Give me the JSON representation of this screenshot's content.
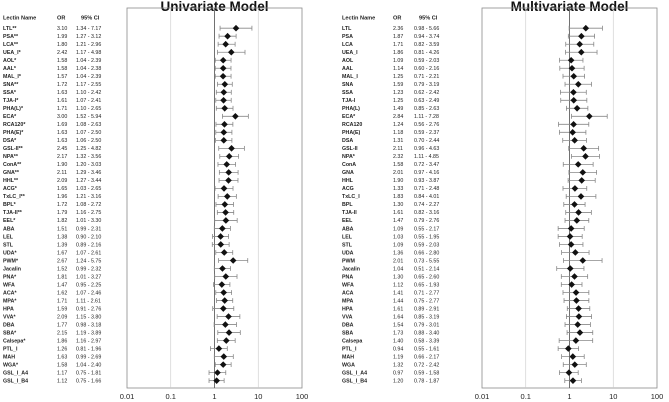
{
  "chart_data": [
    {
      "type": "forest",
      "title": "Univariate Model",
      "columns": {
        "label": "Lectin Name",
        "or": "OR",
        "ci": "95% CI"
      },
      "xscale": "log",
      "xlim": [
        0.01,
        100
      ],
      "xticks": [
        "0.01",
        "0.1",
        "1",
        "10",
        "100"
      ],
      "reference_line": 1,
      "rows": [
        {
          "name": "LTL**",
          "or": 3.1,
          "lo": 1.34,
          "hi": 7.17,
          "or_text": "3.10",
          "ci_text": "1.34 - 7.17"
        },
        {
          "name": "PSA**",
          "or": 1.99,
          "lo": 1.27,
          "hi": 3.12,
          "or_text": "1.99",
          "ci_text": "1.27 - 3.12"
        },
        {
          "name": "LCA**",
          "or": 1.8,
          "lo": 1.21,
          "hi": 2.96,
          "or_text": "1.80",
          "ci_text": "1.21 - 2.96"
        },
        {
          "name": "UEA_I*",
          "or": 2.42,
          "lo": 1.17,
          "hi": 4.98,
          "or_text": "2.42",
          "ci_text": "1.17 - 4.98"
        },
        {
          "name": "AOL*",
          "or": 1.58,
          "lo": 1.04,
          "hi": 2.39,
          "or_text": "1.58",
          "ci_text": "1.04 - 2.39"
        },
        {
          "name": "AAL*",
          "or": 1.58,
          "lo": 1.04,
          "hi": 2.38,
          "or_text": "1.58",
          "ci_text": "1.04 - 2.38"
        },
        {
          "name": "MAL_I*",
          "or": 1.57,
          "lo": 1.04,
          "hi": 2.39,
          "or_text": "1.57",
          "ci_text": "1.04 - 2.39"
        },
        {
          "name": "SNA**",
          "or": 1.72,
          "lo": 1.17,
          "hi": 2.55,
          "or_text": "1.72",
          "ci_text": "1.17 - 2.55"
        },
        {
          "name": "SSA*",
          "or": 1.63,
          "lo": 1.1,
          "hi": 2.42,
          "or_text": "1.63",
          "ci_text": "1.10 - 2.42"
        },
        {
          "name": "TJA-I*",
          "or": 1.61,
          "lo": 1.07,
          "hi": 2.41,
          "or_text": "1.61",
          "ci_text": "1.07 - 2.41"
        },
        {
          "name": "PHA(L)*",
          "or": 1.71,
          "lo": 1.1,
          "hi": 2.65,
          "or_text": "1.71",
          "ci_text": "1.10 - 2.65"
        },
        {
          "name": "ECA*",
          "or": 3.0,
          "lo": 1.52,
          "hi": 5.94,
          "or_text": "3.00",
          "ci_text": "1.52 - 5.94"
        },
        {
          "name": "RCA120*",
          "or": 1.69,
          "lo": 1.08,
          "hi": 2.63,
          "or_text": "1.69",
          "ci_text": "1.08 - 2.63"
        },
        {
          "name": "PHA(E)*",
          "or": 1.63,
          "lo": 1.07,
          "hi": 2.5,
          "or_text": "1.63",
          "ci_text": "1.07 - 2.50"
        },
        {
          "name": "DSA*",
          "or": 1.63,
          "lo": 1.06,
          "hi": 2.5,
          "or_text": "1.63",
          "ci_text": "1.06 - 2.50"
        },
        {
          "name": "GSL-II**",
          "or": 2.45,
          "lo": 1.25,
          "hi": 4.82,
          "or_text": "2.45",
          "ci_text": "1.25 - 4.82"
        },
        {
          "name": "NPA**",
          "or": 2.17,
          "lo": 1.32,
          "hi": 3.56,
          "or_text": "2.17",
          "ci_text": "1.32 - 3.56"
        },
        {
          "name": "ConA**",
          "or": 1.9,
          "lo": 1.2,
          "hi": 3.03,
          "or_text": "1.90",
          "ci_text": "1.20 - 3.03"
        },
        {
          "name": "GNA**",
          "or": 2.11,
          "lo": 1.29,
          "hi": 3.46,
          "or_text": "2.11",
          "ci_text": "1.29 - 3.46"
        },
        {
          "name": "HHL**",
          "or": 2.09,
          "lo": 1.27,
          "hi": 3.44,
          "or_text": "2.09",
          "ci_text": "1.27 - 3.44"
        },
        {
          "name": "ACG*",
          "or": 1.65,
          "lo": 1.03,
          "hi": 2.65,
          "or_text": "1.65",
          "ci_text": "1.03 - 2.65"
        },
        {
          "name": "TxLC_I**",
          "or": 1.96,
          "lo": 1.21,
          "hi": 3.16,
          "or_text": "1.96",
          "ci_text": "1.21 - 3.16"
        },
        {
          "name": "BPL*",
          "or": 1.72,
          "lo": 1.08,
          "hi": 2.72,
          "or_text": "1.72",
          "ci_text": "1.08 - 2.72"
        },
        {
          "name": "TJA-II**",
          "or": 1.79,
          "lo": 1.16,
          "hi": 2.75,
          "or_text": "1.79",
          "ci_text": "1.16 - 2.75"
        },
        {
          "name": "EEL*",
          "or": 1.82,
          "lo": 1.01,
          "hi": 3.3,
          "or_text": "1.82",
          "ci_text": "1.01 - 3.30"
        },
        {
          "name": "ABA",
          "or": 1.51,
          "lo": 0.99,
          "hi": 2.31,
          "or_text": "1.51",
          "ci_text": "0.99 - 2.31"
        },
        {
          "name": "LEL",
          "or": 1.38,
          "lo": 0.9,
          "hi": 2.1,
          "or_text": "1.38",
          "ci_text": "0.90 - 2.10"
        },
        {
          "name": "STL",
          "or": 1.39,
          "lo": 0.89,
          "hi": 2.16,
          "or_text": "1.39",
          "ci_text": "0.89 - 2.16"
        },
        {
          "name": "UDA*",
          "or": 1.67,
          "lo": 1.07,
          "hi": 2.61,
          "or_text": "1.67",
          "ci_text": "1.07 - 2.61"
        },
        {
          "name": "PWM*",
          "or": 2.67,
          "lo": 1.24,
          "hi": 5.75,
          "or_text": "2.67",
          "ci_text": "1.24 - 5.75"
        },
        {
          "name": "Jacalin",
          "or": 1.52,
          "lo": 0.99,
          "hi": 2.32,
          "or_text": "1.52",
          "ci_text": "0.99 - 2.32"
        },
        {
          "name": "PNA*",
          "or": 1.81,
          "lo": 1.01,
          "hi": 3.27,
          "or_text": "1.81",
          "ci_text": "1.01 - 3.27"
        },
        {
          "name": "WFA",
          "or": 1.47,
          "lo": 0.95,
          "hi": 2.25,
          "or_text": "1.47",
          "ci_text": "0.95 - 2.25"
        },
        {
          "name": "ACA*",
          "or": 1.62,
          "lo": 1.07,
          "hi": 2.46,
          "or_text": "1.62",
          "ci_text": "1.07 - 2.46"
        },
        {
          "name": "MPA*",
          "or": 1.71,
          "lo": 1.11,
          "hi": 2.61,
          "or_text": "1.71",
          "ci_text": "1.11 - 2.61"
        },
        {
          "name": "HPA",
          "or": 1.59,
          "lo": 0.91,
          "hi": 2.76,
          "or_text": "1.59",
          "ci_text": "0.91 - 2.76"
        },
        {
          "name": "VVA*",
          "or": 2.09,
          "lo": 1.15,
          "hi": 3.8,
          "or_text": "2.09",
          "ci_text": "1.15 - 3.80"
        },
        {
          "name": "DBA",
          "or": 1.77,
          "lo": 0.98,
          "hi": 3.18,
          "or_text": "1.77",
          "ci_text": "0.98 - 3.18"
        },
        {
          "name": "SBA*",
          "or": 2.15,
          "lo": 1.19,
          "hi": 3.89,
          "or_text": "2.15",
          "ci_text": "1.19 - 3.89"
        },
        {
          "name": "Calsepa*",
          "or": 1.86,
          "lo": 1.16,
          "hi": 2.97,
          "or_text": "1.86",
          "ci_text": "1.16 - 2.97"
        },
        {
          "name": "PTL_I",
          "or": 1.26,
          "lo": 0.81,
          "hi": 1.96,
          "or_text": "1.26",
          "ci_text": "0.81 - 1.96"
        },
        {
          "name": "MAH",
          "or": 1.63,
          "lo": 0.99,
          "hi": 2.69,
          "or_text": "1.63",
          "ci_text": "0.99 - 2.69"
        },
        {
          "name": "WGA*",
          "or": 1.58,
          "lo": 1.04,
          "hi": 2.4,
          "or_text": "1.58",
          "ci_text": "1.04 - 2.40"
        },
        {
          "name": "GSL_I_A4",
          "or": 1.17,
          "lo": 0.75,
          "hi": 1.81,
          "or_text": "1.17",
          "ci_text": "0.75 - 1.81"
        },
        {
          "name": "GSL_I_B4",
          "or": 1.12,
          "lo": 0.75,
          "hi": 1.66,
          "or_text": "1.12",
          "ci_text": "0.75 - 1.66"
        }
      ]
    },
    {
      "type": "forest",
      "title": "Multivariate Model",
      "columns": {
        "label": "Lectin Name",
        "or": "OR",
        "ci": "95% CI"
      },
      "xscale": "log",
      "xlim": [
        0.01,
        100
      ],
      "xticks": [
        "0.01",
        "0.1",
        "1",
        "10",
        "100"
      ],
      "reference_line": 1,
      "rows": [
        {
          "name": "LTL",
          "or": 2.36,
          "lo": 0.98,
          "hi": 5.66,
          "or_text": "2.36",
          "ci_text": "0.98 - 5.66"
        },
        {
          "name": "PSA",
          "or": 1.87,
          "lo": 0.94,
          "hi": 3.74,
          "or_text": "1.87",
          "ci_text": "0.94 - 3.74"
        },
        {
          "name": "LCA",
          "or": 1.71,
          "lo": 0.82,
          "hi": 3.59,
          "or_text": "1.71",
          "ci_text": "0.82 - 3.59"
        },
        {
          "name": "UEA_I",
          "or": 1.86,
          "lo": 0.81,
          "hi": 4.26,
          "or_text": "1.86",
          "ci_text": "0.81 - 4.26"
        },
        {
          "name": "AOL",
          "or": 1.09,
          "lo": 0.59,
          "hi": 2.03,
          "or_text": "1.09",
          "ci_text": "0.59 - 2.03"
        },
        {
          "name": "AAL",
          "or": 1.14,
          "lo": 0.6,
          "hi": 2.16,
          "or_text": "1.14",
          "ci_text": "0.60 - 2.16"
        },
        {
          "name": "MAL_I",
          "or": 1.25,
          "lo": 0.71,
          "hi": 2.21,
          "or_text": "1.25",
          "ci_text": "0.71 - 2.21"
        },
        {
          "name": "SNA",
          "or": 1.59,
          "lo": 0.79,
          "hi": 3.19,
          "or_text": "1.59",
          "ci_text": "0.79 - 3.19"
        },
        {
          "name": "SSA",
          "or": 1.23,
          "lo": 0.62,
          "hi": 2.42,
          "or_text": "1.23",
          "ci_text": "0.62 - 2.42"
        },
        {
          "name": "TJA-I",
          "or": 1.25,
          "lo": 0.63,
          "hi": 2.49,
          "or_text": "1.25",
          "ci_text": "0.63 - 2.49"
        },
        {
          "name": "PHA(L)",
          "or": 1.49,
          "lo": 0.85,
          "hi": 2.63,
          "or_text": "1.49",
          "ci_text": "0.85 - 2.63"
        },
        {
          "name": "ECA*",
          "or": 2.84,
          "lo": 1.11,
          "hi": 7.28,
          "or_text": "2.84",
          "ci_text": "1.11 - 7.28"
        },
        {
          "name": "RCA120",
          "or": 1.24,
          "lo": 0.56,
          "hi": 2.76,
          "or_text": "1.24",
          "ci_text": "0.56 - 2.76"
        },
        {
          "name": "PHA(E)",
          "or": 1.18,
          "lo": 0.59,
          "hi": 2.37,
          "or_text": "1.18",
          "ci_text": "0.59 - 2.37"
        },
        {
          "name": "DSA",
          "or": 1.31,
          "lo": 0.7,
          "hi": 2.44,
          "or_text": "1.31",
          "ci_text": "0.70 - 2.44"
        },
        {
          "name": "GSL-II",
          "or": 2.11,
          "lo": 0.96,
          "hi": 4.63,
          "or_text": "2.11",
          "ci_text": "0.96 - 4.63"
        },
        {
          "name": "NPA*",
          "or": 2.32,
          "lo": 1.11,
          "hi": 4.85,
          "or_text": "2.32",
          "ci_text": "1.11 - 4.85"
        },
        {
          "name": "ConA",
          "or": 1.58,
          "lo": 0.72,
          "hi": 3.47,
          "or_text": "1.58",
          "ci_text": "0.72 - 3.47"
        },
        {
          "name": "GNA",
          "or": 2.01,
          "lo": 0.97,
          "hi": 4.16,
          "or_text": "2.01",
          "ci_text": "0.97 - 4.16"
        },
        {
          "name": "HHL",
          "or": 1.9,
          "lo": 0.93,
          "hi": 3.87,
          "or_text": "1.90",
          "ci_text": "0.93 - 3.87"
        },
        {
          "name": "ACG",
          "or": 1.33,
          "lo": 0.71,
          "hi": 2.48,
          "or_text": "1.33",
          "ci_text": "0.71 - 2.48"
        },
        {
          "name": "TxLC_I",
          "or": 1.83,
          "lo": 0.84,
          "hi": 4.01,
          "or_text": "1.83",
          "ci_text": "0.84 - 4.01"
        },
        {
          "name": "BPL",
          "or": 1.3,
          "lo": 0.74,
          "hi": 2.27,
          "or_text": "1.30",
          "ci_text": "0.74 - 2.27"
        },
        {
          "name": "TJA-II",
          "or": 1.61,
          "lo": 0.82,
          "hi": 3.16,
          "or_text": "1.61",
          "ci_text": "0.82 - 3.16"
        },
        {
          "name": "EEL",
          "or": 1.47,
          "lo": 0.79,
          "hi": 2.76,
          "or_text": "1.47",
          "ci_text": "0.79 - 2.76"
        },
        {
          "name": "ABA",
          "or": 1.09,
          "lo": 0.55,
          "hi": 2.17,
          "or_text": "1.09",
          "ci_text": "0.55 - 2.17"
        },
        {
          "name": "LEL",
          "or": 1.03,
          "lo": 0.55,
          "hi": 1.95,
          "or_text": "1.03",
          "ci_text": "0.55 - 1.95"
        },
        {
          "name": "STL",
          "or": 1.09,
          "lo": 0.59,
          "hi": 2.03,
          "or_text": "1.09",
          "ci_text": "0.59 - 2.03"
        },
        {
          "name": "UDA",
          "or": 1.36,
          "lo": 0.66,
          "hi": 2.8,
          "or_text": "1.36",
          "ci_text": "0.66 - 2.80"
        },
        {
          "name": "PWM",
          "or": 2.01,
          "lo": 0.73,
          "hi": 5.55,
          "or_text": "2.01",
          "ci_text": "0.73 - 5.55"
        },
        {
          "name": "Jacalin",
          "or": 1.04,
          "lo": 0.51,
          "hi": 2.14,
          "or_text": "1.04",
          "ci_text": "0.51 - 2.14"
        },
        {
          "name": "PNA",
          "or": 1.3,
          "lo": 0.65,
          "hi": 2.6,
          "or_text": "1.30",
          "ci_text": "0.65 - 2.60"
        },
        {
          "name": "WFA",
          "or": 1.12,
          "lo": 0.65,
          "hi": 1.93,
          "or_text": "1.12",
          "ci_text": "0.65 - 1.93"
        },
        {
          "name": "ACA",
          "or": 1.41,
          "lo": 0.71,
          "hi": 2.77,
          "or_text": "1.41",
          "ci_text": "0.71 - 2.77"
        },
        {
          "name": "MPA",
          "or": 1.44,
          "lo": 0.75,
          "hi": 2.77,
          "or_text": "1.44",
          "ci_text": "0.75 - 2.77"
        },
        {
          "name": "HPA",
          "or": 1.61,
          "lo": 0.89,
          "hi": 2.91,
          "or_text": "1.61",
          "ci_text": "0.89 - 2.91"
        },
        {
          "name": "VVA",
          "or": 1.64,
          "lo": 0.85,
          "hi": 3.19,
          "or_text": "1.64",
          "ci_text": "0.85 - 3.19"
        },
        {
          "name": "DBA",
          "or": 1.54,
          "lo": 0.79,
          "hi": 3.01,
          "or_text": "1.54",
          "ci_text": "0.79 - 3.01"
        },
        {
          "name": "SBA",
          "or": 1.73,
          "lo": 0.88,
          "hi": 3.4,
          "or_text": "1.73",
          "ci_text": "0.88 - 3.40"
        },
        {
          "name": "Calsepa",
          "or": 1.4,
          "lo": 0.58,
          "hi": 3.39,
          "or_text": "1.40",
          "ci_text": "0.58 - 3.39"
        },
        {
          "name": "PTL_I",
          "or": 0.94,
          "lo": 0.55,
          "hi": 1.61,
          "or_text": "0.94",
          "ci_text": "0.55 - 1.61"
        },
        {
          "name": "MAH",
          "or": 1.19,
          "lo": 0.66,
          "hi": 2.17,
          "or_text": "1.19",
          "ci_text": "0.66 - 2.17"
        },
        {
          "name": "WGA",
          "or": 1.32,
          "lo": 0.72,
          "hi": 2.42,
          "or_text": "1.32",
          "ci_text": "0.72 - 2.42"
        },
        {
          "name": "GSL_I_A4",
          "or": 0.97,
          "lo": 0.59,
          "hi": 1.58,
          "or_text": "0.97",
          "ci_text": "0.59 - 1.58"
        },
        {
          "name": "GSL_I_B4",
          "or": 1.2,
          "lo": 0.78,
          "hi": 1.87,
          "or_text": "1.20",
          "ci_text": "0.78 - 1.87"
        }
      ]
    }
  ]
}
